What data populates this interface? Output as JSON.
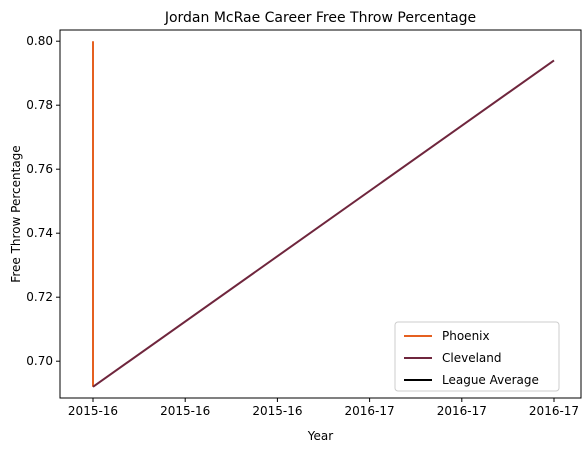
{
  "chart_data": {
    "type": "line",
    "title": "Jordan McRae Career Free Throw Percentage",
    "xlabel": "Year",
    "ylabel": "Free Throw Percentage",
    "x_tick_labels": [
      "2015-16",
      "2015-16",
      "2015-16",
      "2016-17",
      "2016-17",
      "2016-17"
    ],
    "xlim": [
      2015.0,
      2016.0
    ],
    "ylim": [
      0.6885,
      0.8035
    ],
    "y_ticks": [
      0.7,
      0.72,
      0.74,
      0.76,
      0.78,
      0.8
    ],
    "grid": false,
    "legend_position": "lower-right",
    "series": [
      {
        "name": "Phoenix",
        "color": "#E56020",
        "points": [
          {
            "x": 2015.0,
            "y": 0.692
          },
          {
            "x": 2015.0,
            "y": 0.8
          }
        ]
      },
      {
        "name": "Cleveland",
        "color": "#6F263D",
        "points": [
          {
            "x": 2015.0,
            "y": 0.692
          },
          {
            "x": 2016.0,
            "y": 0.794
          }
        ]
      },
      {
        "name": "League Average",
        "color": "#000000",
        "points": []
      }
    ]
  }
}
